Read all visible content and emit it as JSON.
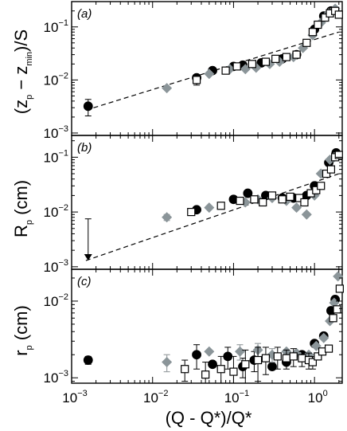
{
  "figure": {
    "xlabel": "(Q - Q*)/Q*",
    "x_tick_labels": [
      {
        "base": "10",
        "exp": "−3",
        "value": 0.001
      },
      {
        "base": "10",
        "exp": "−2",
        "value": 0.01
      },
      {
        "base": "10",
        "exp": "−1",
        "value": 0.1
      },
      {
        "base": "10",
        "exp": "0",
        "value": 1
      }
    ]
  },
  "chart_data": [
    {
      "type": "scatter",
      "panel": "(a)",
      "ylabel": "(z_p − z_min)/S",
      "ylabel_parts": {
        "open": "(z",
        "sub1": "p",
        "mid": " − z",
        "sub2": "min",
        "close": ")/S"
      },
      "x_scale": "log",
      "y_scale": "log",
      "xlim": [
        0.001,
        2.2
      ],
      "ylim": [
        0.0009,
        0.3
      ],
      "y_tick_labels": [
        {
          "base": "10",
          "exp": "−3",
          "value": 0.001
        },
        {
          "base": "10",
          "exp": "−2",
          "value": 0.01
        },
        {
          "base": "10",
          "exp": "−1",
          "value": 0.1
        }
      ],
      "fit_line": {
        "x": [
          0.0015,
          2.0
        ],
        "y": [
          0.0027,
          0.08
        ]
      },
      "series": [
        {
          "marker": "filled-circle",
          "color": "#000000",
          "points": [
            [
              0.0016,
              0.0032
            ],
            [
              0.035,
              0.011
            ],
            [
              0.055,
              0.015
            ],
            [
              0.1,
              0.018
            ],
            [
              0.13,
              0.019
            ],
            [
              0.22,
              0.021
            ],
            [
              0.4,
              0.025
            ],
            [
              0.6,
              0.03
            ],
            [
              1.0,
              0.09
            ],
            [
              1.3,
              0.16
            ],
            [
              1.6,
              0.2
            ]
          ],
          "err": [
            0.0011,
            0,
            0,
            0,
            0,
            0,
            0,
            0,
            0,
            0,
            0
          ]
        },
        {
          "marker": "grey-diamond",
          "color": "#8b9599",
          "points": [
            [
              0.015,
              0.007
            ],
            [
              0.05,
              0.013
            ],
            [
              0.09,
              0.016
            ],
            [
              0.14,
              0.016
            ],
            [
              0.19,
              0.017
            ],
            [
              0.28,
              0.02
            ],
            [
              0.37,
              0.022
            ],
            [
              0.55,
              0.027
            ],
            [
              0.72,
              0.04
            ],
            [
              0.95,
              0.07
            ],
            [
              1.2,
              0.12
            ],
            [
              1.5,
              0.18
            ],
            [
              1.8,
              0.22
            ]
          ],
          "err": [
            0,
            0,
            0,
            0,
            0,
            0,
            0,
            0,
            0,
            0,
            0,
            0,
            0
          ]
        },
        {
          "marker": "open-square",
          "color": "#000000",
          "points": [
            [
              0.035,
              0.01
            ],
            [
              0.08,
              0.015
            ],
            [
              0.11,
              0.018
            ],
            [
              0.17,
              0.02
            ],
            [
              0.25,
              0.022
            ],
            [
              0.33,
              0.025
            ],
            [
              0.45,
              0.027
            ],
            [
              0.6,
              0.03
            ],
            [
              0.8,
              0.05
            ],
            [
              0.95,
              0.08
            ],
            [
              1.1,
              0.11
            ],
            [
              1.35,
              0.15
            ],
            [
              1.55,
              0.18
            ],
            [
              1.8,
              0.2
            ],
            [
              2.0,
              0.17
            ]
          ],
          "err": [
            0.002,
            0,
            0,
            0,
            0,
            0,
            0,
            0,
            0,
            0,
            0,
            0,
            0,
            0,
            0
          ]
        }
      ]
    },
    {
      "type": "scatter",
      "panel": "(b)",
      "ylabel": "R_p (cm)",
      "ylabel_parts": {
        "main": "R",
        "sub": "p",
        "unit": " (cm)"
      },
      "x_scale": "log",
      "y_scale": "log",
      "xlim": [
        0.001,
        2.2
      ],
      "ylim": [
        0.0009,
        0.25
      ],
      "y_tick_labels": [
        {
          "base": "10",
          "exp": "−3",
          "value": 0.001
        },
        {
          "base": "10",
          "exp": "−2",
          "value": 0.01
        },
        {
          "base": "10",
          "exp": "−1",
          "value": 0.1
        }
      ],
      "fit_line": {
        "x": [
          0.0015,
          2.0
        ],
        "y": [
          0.0013,
          0.05
        ]
      },
      "upper_limit": {
        "x": 0.0016,
        "y_top": 0.0075,
        "y_bottom": 0.0013
      },
      "series": [
        {
          "marker": "filled-circle",
          "color": "#000000",
          "points": [
            [
              0.035,
              0.011
            ],
            [
              0.1,
              0.017
            ],
            [
              0.15,
              0.022
            ],
            [
              0.25,
              0.02
            ],
            [
              0.4,
              0.018
            ],
            [
              0.55,
              0.018
            ],
            [
              0.8,
              0.02
            ],
            [
              1.0,
              0.03
            ],
            [
              1.5,
              0.08
            ],
            [
              1.85,
              0.12
            ]
          ],
          "err": [
            0,
            0.002,
            0,
            0,
            0,
            0,
            0,
            0,
            0,
            0
          ]
        },
        {
          "marker": "grey-diamond",
          "color": "#8b9599",
          "points": [
            [
              0.015,
              0.008
            ],
            [
              0.05,
              0.012
            ],
            [
              0.14,
              0.015
            ],
            [
              0.2,
              0.017
            ],
            [
              0.3,
              0.018
            ],
            [
              0.45,
              0.016
            ],
            [
              0.6,
              0.012
            ],
            [
              0.8,
              0.009
            ],
            [
              1.0,
              0.02
            ],
            [
              1.2,
              0.05
            ],
            [
              1.55,
              0.09
            ],
            [
              1.75,
              0.1
            ]
          ],
          "err": [
            0.001,
            0,
            0,
            0,
            0,
            0,
            0,
            0,
            0,
            0,
            0,
            0
          ]
        },
        {
          "marker": "open-square",
          "color": "#000000",
          "points": [
            [
              0.03,
              0.01
            ],
            [
              0.07,
              0.013
            ],
            [
              0.12,
              0.016
            ],
            [
              0.18,
              0.017
            ],
            [
              0.23,
              0.015
            ],
            [
              0.3,
              0.02
            ],
            [
              0.4,
              0.017
            ],
            [
              0.5,
              0.019
            ],
            [
              0.65,
              0.018
            ],
            [
              0.75,
              0.015
            ],
            [
              0.9,
              0.022
            ],
            [
              1.05,
              0.025
            ],
            [
              1.2,
              0.03
            ],
            [
              1.4,
              0.05
            ],
            [
              1.6,
              0.06
            ],
            [
              1.8,
              0.1
            ],
            [
              2.0,
              0.11
            ]
          ],
          "err": [
            0,
            0,
            0,
            0,
            0,
            0,
            0,
            0,
            0,
            0,
            0,
            0,
            0,
            0,
            0,
            0,
            0
          ]
        }
      ]
    },
    {
      "type": "scatter",
      "panel": "(c)",
      "ylabel": "r_p (cm)",
      "ylabel_parts": {
        "main": "r",
        "sub": "p",
        "unit": " (cm)"
      },
      "x_scale": "log",
      "y_scale": "log",
      "xlim": [
        0.001,
        2.2
      ],
      "ylim": [
        0.00085,
        0.026
      ],
      "y_tick_labels": [
        {
          "base": "10",
          "exp": "−3",
          "value": 0.001
        },
        {
          "base": "10",
          "exp": "−2",
          "value": 0.01
        }
      ],
      "series": [
        {
          "marker": "filled-circle",
          "color": "#000000",
          "points": [
            [
              0.0016,
              0.0017
            ],
            [
              0.035,
              0.002
            ],
            [
              0.055,
              0.0015
            ],
            [
              0.085,
              0.0019
            ],
            [
              0.13,
              0.0014
            ],
            [
              0.18,
              0.0017
            ],
            [
              0.3,
              0.0014
            ],
            [
              0.45,
              0.0016
            ],
            [
              0.7,
              0.002
            ],
            [
              1.0,
              0.0028
            ],
            [
              1.3,
              0.0035
            ],
            [
              1.6,
              0.0075
            ],
            [
              1.8,
              0.0105
            ]
          ],
          "err": [
            0.0002,
            0.0007,
            0,
            0.0006,
            0.0004,
            0.0005,
            0,
            0,
            0,
            0,
            0,
            0,
            0
          ]
        },
        {
          "marker": "grey-diamond",
          "color": "#8b9599",
          "points": [
            [
              0.015,
              0.0016
            ],
            [
              0.05,
              0.0022
            ],
            [
              0.12,
              0.0022
            ],
            [
              0.2,
              0.0023
            ],
            [
              0.3,
              0.002
            ],
            [
              0.45,
              0.0022
            ],
            [
              0.6,
              0.0021
            ],
            [
              0.85,
              0.002
            ],
            [
              1.05,
              0.0026
            ],
            [
              1.3,
              0.0033
            ],
            [
              1.55,
              0.0055
            ],
            [
              1.75,
              0.0095
            ],
            [
              1.95,
              0.021
            ]
          ],
          "err": [
            0.0004,
            0,
            0.0005,
            0.0005,
            0.0004,
            0,
            0,
            0,
            0,
            0,
            0,
            0,
            0
          ]
        },
        {
          "marker": "open-square",
          "color": "#000000",
          "points": [
            [
              0.025,
              0.0013
            ],
            [
              0.045,
              0.0011
            ],
            [
              0.07,
              0.0013
            ],
            [
              0.1,
              0.0012
            ],
            [
              0.14,
              0.0015
            ],
            [
              0.2,
              0.0017
            ],
            [
              0.25,
              0.0018
            ],
            [
              0.35,
              0.0019
            ],
            [
              0.45,
              0.0018
            ],
            [
              0.55,
              0.0019
            ],
            [
              0.7,
              0.0018
            ],
            [
              0.85,
              0.0017
            ],
            [
              0.95,
              0.0016
            ],
            [
              1.1,
              0.0019
            ],
            [
              1.25,
              0.0022
            ],
            [
              1.5,
              0.0024
            ],
            [
              1.7,
              0.006
            ],
            [
              1.9,
              0.0078
            ],
            [
              2.05,
              0.0145
            ]
          ],
          "err": [
            0.0004,
            0.0005,
            0.0006,
            0.0007,
            0.0008,
            0.0008,
            0.0007,
            0.0006,
            0.0005,
            0.0005,
            0.0004,
            0.0004,
            0.0003,
            0,
            0,
            0,
            0,
            0,
            0
          ]
        }
      ]
    }
  ]
}
